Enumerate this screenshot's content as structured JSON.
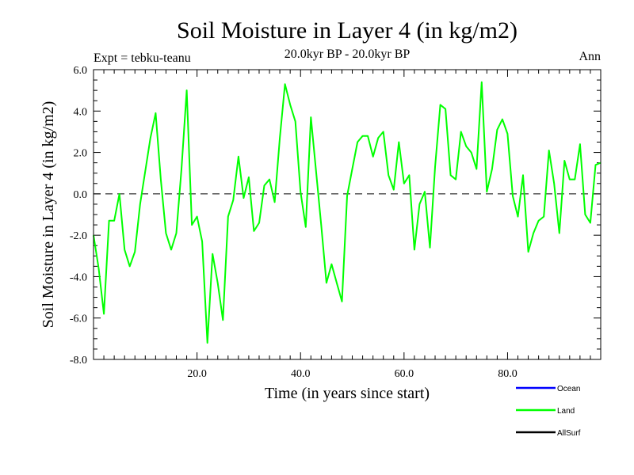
{
  "chart_data": {
    "type": "line",
    "title": "Soil Moisture in Layer 4 (in kg/m2)",
    "subtitle": "20.0kyr BP - 20.0kyr BP",
    "experiment": "Expt = tebku-teanu",
    "season": "Ann",
    "xlabel": "Time (in years since start)",
    "ylabel": "Soil Moisture in Layer 4 (in kg/m2)",
    "xlim": [
      0,
      98
    ],
    "ylim": [
      -8,
      6
    ],
    "x_ticks": [
      20,
      40,
      60,
      80
    ],
    "x_tick_labels": [
      "20.0",
      "40.0",
      "60.0",
      "80.0"
    ],
    "y_ticks": [
      -8,
      -6,
      -4,
      -2,
      0,
      2,
      4,
      6
    ],
    "y_tick_labels": [
      "-8.0",
      "-6.0",
      "-4.0",
      "-2.0",
      "0.0",
      "2.0",
      "4.0",
      "6.0"
    ],
    "reference_line": 0,
    "legend": [
      {
        "name": "Ocean",
        "color": "#0000ff"
      },
      {
        "name": "Land",
        "color": "#00ff00"
      },
      {
        "name": "AllSurf",
        "color": "#000000"
      }
    ],
    "series": [
      {
        "name": "Land",
        "color": "#00ff00",
        "x": [
          0,
          1,
          2,
          3,
          4,
          5,
          6,
          7,
          8,
          9,
          10,
          11,
          12,
          13,
          14,
          15,
          16,
          17,
          18,
          19,
          20,
          21,
          22,
          23,
          24,
          25,
          26,
          27,
          28,
          29,
          30,
          31,
          32,
          33,
          34,
          35,
          36,
          37,
          38,
          39,
          40,
          41,
          42,
          43,
          44,
          45,
          46,
          47,
          48,
          49,
          50,
          51,
          52,
          53,
          54,
          55,
          56,
          57,
          58,
          59,
          60,
          61,
          62,
          63,
          64,
          65,
          66,
          67,
          68,
          69,
          70,
          71,
          72,
          73,
          74,
          75,
          76,
          77,
          78,
          79,
          80,
          81,
          82,
          83,
          84,
          85,
          86,
          87,
          88,
          89,
          90,
          91,
          92,
          93,
          94,
          95,
          96,
          97,
          98
        ],
        "values": [
          -2.0,
          -3.6,
          -5.8,
          -1.3,
          -1.3,
          0.0,
          -2.7,
          -3.5,
          -2.8,
          -0.5,
          1.1,
          2.7,
          3.9,
          0.7,
          -1.9,
          -2.7,
          -1.9,
          1.2,
          5.0,
          -1.5,
          -1.1,
          -2.3,
          -7.2,
          -2.9,
          -4.3,
          -6.1,
          -1.1,
          -0.3,
          1.8,
          -0.2,
          0.8,
          -1.8,
          -1.4,
          0.4,
          0.7,
          -0.4,
          2.7,
          5.3,
          4.3,
          3.5,
          0.1,
          -1.6,
          3.7,
          1.1,
          -1.5,
          -4.3,
          -3.4,
          -4.3,
          -5.2,
          -0.1,
          1.2,
          2.5,
          2.8,
          2.8,
          1.8,
          2.7,
          3.0,
          0.9,
          0.2,
          2.5,
          0.5,
          0.9,
          -2.7,
          -0.5,
          0.1,
          -2.6,
          1.3,
          4.3,
          4.1,
          0.9,
          0.7,
          3.0,
          2.3,
          2.0,
          1.2,
          5.4,
          0.1,
          1.2,
          3.1,
          3.6,
          2.9,
          -0.1,
          -1.1,
          0.9,
          -2.8,
          -1.9,
          -1.3,
          -1.1,
          2.1,
          0.5,
          -1.9,
          1.6,
          0.7,
          0.7,
          2.4,
          -1.0,
          -1.4,
          1.4,
          1.5
        ]
      }
    ]
  }
}
